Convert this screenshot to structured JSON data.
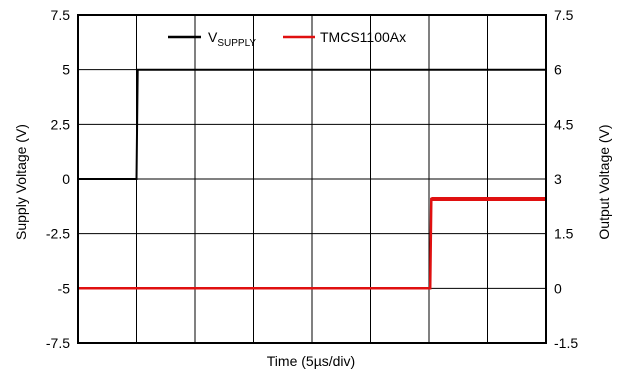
{
  "chart_data": {
    "type": "line",
    "xlabel": "Time (5µs/div)",
    "x_divisions": 8,
    "x_range_div": [
      0,
      8
    ],
    "ylabel_left": "Supply Voltage (V)",
    "ylabel_right": "Output Voltage (V)",
    "ylim_left": [
      -7.5,
      7.5
    ],
    "ylim_right": [
      -1.5,
      7.5
    ],
    "yticks_left": [
      "7.5",
      "5",
      "2.5",
      "0",
      "-2.5",
      "-5",
      "-7.5"
    ],
    "yticks_right": [
      "7.5",
      "6",
      "4.5",
      "3",
      "1.5",
      "0",
      "-1.5"
    ],
    "grid": true,
    "legend_position": "top-center",
    "series": [
      {
        "name": "V",
        "name_sub": "SUPPLY",
        "axis": "left",
        "color": "#000000",
        "x_div": [
          0,
          1.0,
          1.02,
          8
        ],
        "y": [
          0,
          0,
          5.0,
          5.0
        ]
      },
      {
        "name": "TMCS1100Ax",
        "axis": "right",
        "color": "#e01010",
        "x_div": [
          0,
          6.02,
          6.04,
          8
        ],
        "y": [
          0,
          0,
          2.45,
          2.45
        ]
      }
    ]
  }
}
